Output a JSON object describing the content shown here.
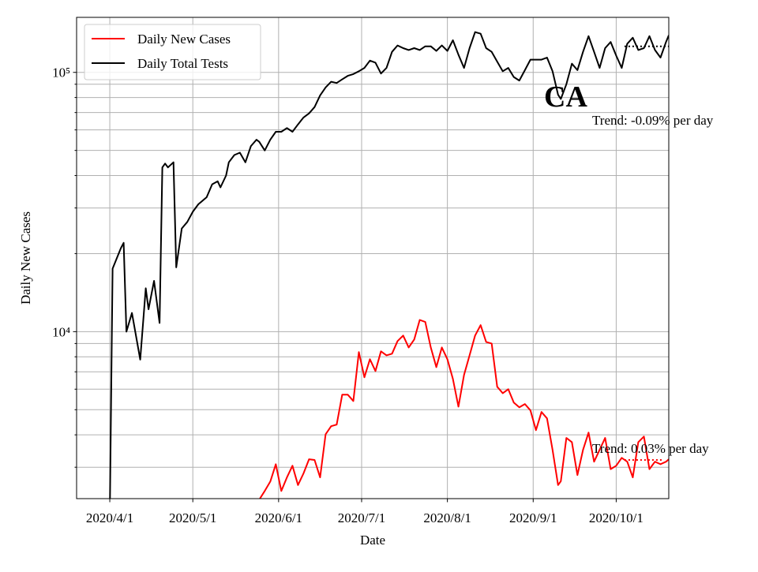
{
  "chart_data": {
    "type": "line",
    "ylabel": "Daily New Cases",
    "xlabel": "Date",
    "log_y": true,
    "grid": true,
    "legend": "upper left",
    "xlim": [
      "2020-03-20",
      "2020-10-20"
    ],
    "ylim": [
      2270,
      163000
    ],
    "xticks": [
      {
        "value": "2020-04-01",
        "label": "2020/4/1"
      },
      {
        "value": "2020-05-01",
        "label": "2020/5/1"
      },
      {
        "value": "2020-06-01",
        "label": "2020/6/1"
      },
      {
        "value": "2020-07-01",
        "label": "2020/7/1"
      },
      {
        "value": "2020-08-01",
        "label": "2020/8/1"
      },
      {
        "value": "2020-09-01",
        "label": "2020/9/1"
      },
      {
        "value": "2020-10-01",
        "label": "2020/10/1"
      }
    ],
    "yticks": [
      {
        "value": 10000,
        "label": "10⁴"
      },
      {
        "value": 100000,
        "label": "10⁵"
      }
    ],
    "yminorticks": [
      3000,
      4000,
      5000,
      6000,
      7000,
      8000,
      9000,
      20000,
      30000,
      40000,
      50000,
      60000,
      70000,
      80000,
      90000
    ],
    "x": [
      "2020-04-01",
      "2020-04-02",
      "2020-04-05",
      "2020-04-06",
      "2020-04-07",
      "2020-04-09",
      "2020-04-12",
      "2020-04-14",
      "2020-04-15",
      "2020-04-17",
      "2020-04-19",
      "2020-04-20",
      "2020-04-21",
      "2020-04-22",
      "2020-04-24",
      "2020-04-25",
      "2020-04-27",
      "2020-04-29",
      "2020-05-01",
      "2020-05-03",
      "2020-05-06",
      "2020-05-08",
      "2020-05-10",
      "2020-05-11",
      "2020-05-13",
      "2020-05-14",
      "2020-05-16",
      "2020-05-18",
      "2020-05-20",
      "2020-05-22",
      "2020-05-24",
      "2020-05-25",
      "2020-05-27",
      "2020-05-29",
      "2020-05-31",
      "2020-06-02",
      "2020-06-04",
      "2020-06-06",
      "2020-06-08",
      "2020-06-10",
      "2020-06-12",
      "2020-06-14",
      "2020-06-16",
      "2020-06-18",
      "2020-06-20",
      "2020-06-22",
      "2020-06-24",
      "2020-06-26",
      "2020-06-28",
      "2020-06-30",
      "2020-07-02",
      "2020-07-04",
      "2020-07-06",
      "2020-07-08",
      "2020-07-10",
      "2020-07-12",
      "2020-07-14",
      "2020-07-16",
      "2020-07-18",
      "2020-07-20",
      "2020-07-22",
      "2020-07-24",
      "2020-07-26",
      "2020-07-28",
      "2020-07-30",
      "2020-08-01",
      "2020-08-03",
      "2020-08-05",
      "2020-08-07",
      "2020-08-09",
      "2020-08-11",
      "2020-08-13",
      "2020-08-15",
      "2020-08-17",
      "2020-08-19",
      "2020-08-21",
      "2020-08-23",
      "2020-08-25",
      "2020-08-27",
      "2020-08-29",
      "2020-08-31",
      "2020-09-02",
      "2020-09-04",
      "2020-09-06",
      "2020-09-08",
      "2020-09-10",
      "2020-09-11",
      "2020-09-13",
      "2020-09-15",
      "2020-09-17",
      "2020-09-19",
      "2020-09-21",
      "2020-09-23",
      "2020-09-25",
      "2020-09-27",
      "2020-09-29",
      "2020-10-01",
      "2020-10-03",
      "2020-10-05",
      "2020-10-07",
      "2020-10-09",
      "2020-10-11",
      "2020-10-13",
      "2020-10-15",
      "2020-10-17",
      "2020-10-19",
      "2020-10-20"
    ],
    "series": [
      {
        "name": "Daily New Cases",
        "color": "#ff0000",
        "values": [
          null,
          null,
          null,
          null,
          null,
          null,
          null,
          null,
          null,
          null,
          null,
          null,
          null,
          null,
          null,
          null,
          null,
          null,
          null,
          null,
          null,
          null,
          null,
          null,
          null,
          null,
          null,
          null,
          2200,
          2250,
          2200,
          2250,
          2430,
          2640,
          3080,
          2430,
          2740,
          3040,
          2560,
          2840,
          3220,
          3200,
          2740,
          4020,
          4320,
          4380,
          5710,
          5710,
          5400,
          8340,
          6670,
          7830,
          7050,
          8400,
          8100,
          8220,
          9200,
          9660,
          8690,
          9330,
          11100,
          10900,
          8690,
          7300,
          8690,
          7830,
          6570,
          5140,
          6810,
          8100,
          9660,
          10600,
          9130,
          9000,
          6130,
          5790,
          6000,
          5330,
          5110,
          5260,
          4970,
          4170,
          4900,
          4630,
          3500,
          2560,
          2650,
          3890,
          3750,
          2800,
          3500,
          4080,
          3150,
          3500,
          3890,
          2950,
          3040,
          3260,
          3150,
          2740,
          3750,
          3940,
          2950,
          3150,
          3080,
          3150,
          3220
        ]
      },
      {
        "name": "Daily Total Tests",
        "color": "#000000",
        "values": [
          2000,
          17500,
          21000,
          22000,
          10000,
          11800,
          7800,
          14700,
          12200,
          15700,
          10800,
          43000,
          44500,
          43000,
          45000,
          17700,
          25000,
          26500,
          29000,
          31000,
          33000,
          37000,
          38000,
          36000,
          40000,
          45000,
          48000,
          49000,
          45000,
          52000,
          55000,
          54000,
          50000,
          55000,
          59000,
          59000,
          61000,
          59000,
          63000,
          67000,
          69500,
          73500,
          81500,
          87500,
          92000,
          91000,
          94000,
          97000,
          98500,
          101000,
          104000,
          111000,
          109000,
          99000,
          104000,
          120000,
          127000,
          124000,
          122000,
          124000,
          122000,
          126000,
          126000,
          121000,
          127000,
          121000,
          133000,
          117000,
          104000,
          124000,
          143000,
          141000,
          124000,
          120000,
          110000,
          101000,
          104000,
          96000,
          93000,
          102000,
          112000,
          112000,
          112000,
          114000,
          101000,
          82000,
          79000,
          90000,
          108000,
          102000,
          120000,
          138000,
          120000,
          104000,
          124000,
          131000,
          116000,
          104000,
          129000,
          136000,
          122000,
          124000,
          138000,
          122000,
          114000,
          131000,
          139000
        ]
      }
    ],
    "trend_lines": [
      {
        "color": "#ff0000",
        "x": [
          "2020-10-04",
          "2020-10-18"
        ],
        "value": 3200
      },
      {
        "color": "#000000",
        "x": [
          "2020-10-04",
          "2020-10-20"
        ],
        "value": 126000
      }
    ],
    "annotations": [
      "CA",
      "Trend: -0.09% per day",
      "Trend: 0.03% per day"
    ]
  }
}
